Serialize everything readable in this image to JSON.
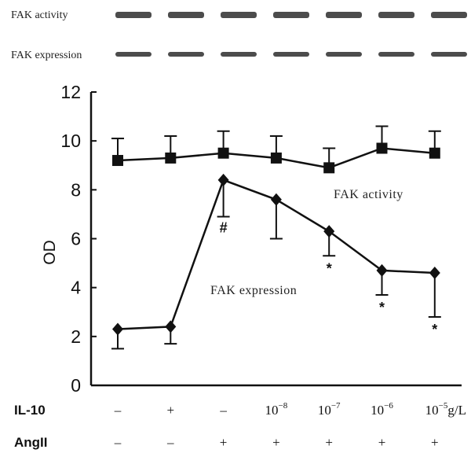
{
  "blots": [
    {
      "label": "FAK activity",
      "lanes": 7
    },
    {
      "label": "FAK expression",
      "lanes": 7
    }
  ],
  "chart_data": {
    "type": "line",
    "title": "",
    "ylabel": "OD",
    "xlabel": "",
    "ylim": [
      0,
      12
    ],
    "yticks": [
      "0",
      "2",
      "4",
      "6",
      "8",
      "10",
      "12"
    ],
    "groups": 7,
    "row_labels": {
      "il10": "IL-10",
      "angii": "AngII"
    },
    "il10": [
      "–",
      "+",
      "–",
      "10^-8",
      "10^-7",
      "10^-6",
      "10^-5"
    ],
    "il10_unit": "g/L",
    "angii": [
      "–",
      "–",
      "+",
      "+",
      "+",
      "+",
      "+"
    ],
    "series": [
      {
        "name": "FAK activity",
        "marker": "square",
        "values": [
          9.2,
          9.3,
          9.5,
          9.3,
          8.9,
          9.7,
          9.5
        ],
        "errors": [
          0.9,
          0.9,
          0.9,
          0.9,
          0.8,
          0.9,
          0.9
        ],
        "error_direction": "up"
      },
      {
        "name": "FAK expression",
        "marker": "diamond",
        "values": [
          2.3,
          2.4,
          8.4,
          7.6,
          6.3,
          4.7,
          4.6
        ],
        "errors": [
          0.8,
          0.7,
          1.5,
          1.6,
          1.0,
          1.0,
          1.8
        ],
        "error_direction": "down"
      }
    ],
    "significance": [
      "",
      "",
      "#",
      "",
      "*",
      "*",
      "*"
    ],
    "colors": {
      "line": "#111111",
      "background": "#ffffff"
    }
  }
}
